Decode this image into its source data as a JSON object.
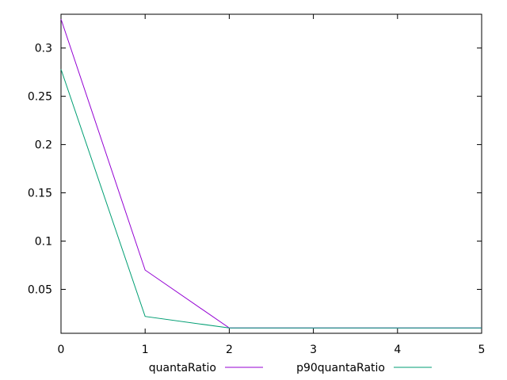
{
  "chart_data": {
    "type": "line",
    "title": "",
    "xlabel": "",
    "ylabel": "",
    "xlim": [
      0,
      5
    ],
    "ylim": [
      0.0045,
      0.335
    ],
    "x_ticks": [
      0,
      1,
      2,
      3,
      4,
      5
    ],
    "x_tick_labels": [
      "0",
      "1",
      "2",
      "3",
      "4",
      "5"
    ],
    "y_ticks": [
      0.05,
      0.1,
      0.15,
      0.2,
      0.25,
      0.3
    ],
    "y_tick_labels": [
      "0.05",
      "0.1",
      "0.15",
      "0.2",
      "0.25",
      "0.3"
    ],
    "grid": false,
    "legend_position": "bottom",
    "x": [
      0,
      1,
      2,
      3,
      4,
      5
    ],
    "series": [
      {
        "name": "quantaRatio",
        "color": "#9400d3",
        "values": [
          0.33,
          0.07,
          0.01,
          0.01,
          0.01,
          0.01
        ]
      },
      {
        "name": "p90quantaRatio",
        "color": "#009e73",
        "values": [
          0.278,
          0.022,
          0.01,
          0.01,
          0.01,
          0.01
        ]
      }
    ]
  }
}
